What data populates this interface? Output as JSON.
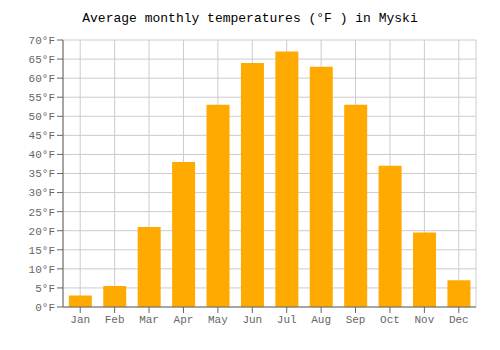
{
  "chart_data": {
    "type": "bar",
    "title": "Average monthly temperatures (°F ) in Myski",
    "categories": [
      "Jan",
      "Feb",
      "Mar",
      "Apr",
      "May",
      "Jun",
      "Jul",
      "Aug",
      "Sep",
      "Oct",
      "Nov",
      "Dec"
    ],
    "values": [
      3,
      5.5,
      21,
      38,
      53,
      64,
      67,
      63,
      53,
      37,
      19.5,
      7
    ],
    "color": "#FFAA00",
    "ylim": [
      0,
      70
    ],
    "yticks": [
      {
        "value": 0,
        "label": "0°F"
      },
      {
        "value": 5,
        "label": "5°F"
      },
      {
        "value": 10,
        "label": "10°F"
      },
      {
        "value": 15,
        "label": "15°F"
      },
      {
        "value": 20,
        "label": "20°F"
      },
      {
        "value": 25,
        "label": "25°F"
      },
      {
        "value": 30,
        "label": "30°F"
      },
      {
        "value": 35,
        "label": "35°F"
      },
      {
        "value": 40,
        "label": "40°F"
      },
      {
        "value": 45,
        "label": "45°F"
      },
      {
        "value": 50,
        "label": "50°F"
      },
      {
        "value": 55,
        "label": "55°F"
      },
      {
        "value": 60,
        "label": "60°F"
      },
      {
        "value": 65,
        "label": "65°F"
      },
      {
        "value": 70,
        "label": "70°F"
      }
    ],
    "grid": true
  }
}
